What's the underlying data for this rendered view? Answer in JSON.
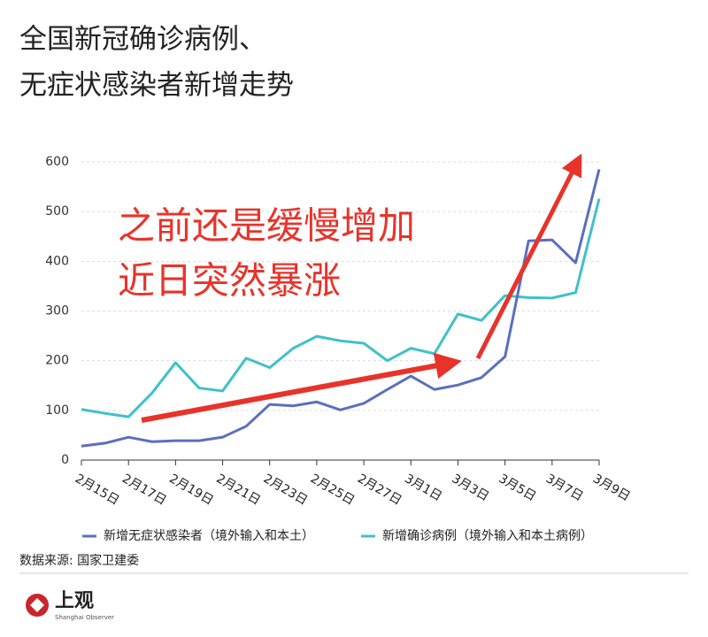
{
  "chart_data": {
    "type": "line",
    "title_lines": [
      "全国新冠确诊病例、",
      "无症状感染者新增走势"
    ],
    "annotation_lines": [
      "之前还是缓慢增加",
      "近日突然暴涨"
    ],
    "categories": [
      "2月15日",
      null,
      "2月17日",
      null,
      "2月19日",
      null,
      "2月21日",
      null,
      "2月23日",
      null,
      "2月25日",
      null,
      "2月27日",
      null,
      "3月1日",
      null,
      "3月3日",
      null,
      "3月5日",
      null,
      "3月7日",
      null,
      "3月9日"
    ],
    "series": [
      {
        "name": "新增无症状感染者（境外输入和本土）",
        "color": "#5b6fbf",
        "values": [
          28,
          34,
          46,
          37,
          39,
          39,
          46,
          68,
          112,
          109,
          117,
          101,
          114,
          142,
          169,
          142,
          151,
          166,
          208,
          441,
          443,
          397,
          585
        ]
      },
      {
        "name": "新增确诊病例（境外输入和本土病例）",
        "color": "#3fc1c9",
        "values": [
          102,
          94,
          87,
          135,
          196,
          145,
          139,
          205,
          186,
          225,
          249,
          240,
          235,
          200,
          225,
          214,
          294,
          281,
          331,
          327,
          326,
          337,
          526
        ]
      }
    ],
    "ylim": [
      0,
      600
    ],
    "yticks": [
      0,
      100,
      200,
      300,
      400,
      500,
      600
    ],
    "grid": true,
    "source": "数据来源: 国家卫建委",
    "logo": "上观",
    "logo_subtitle": "Shanghai Observer"
  }
}
